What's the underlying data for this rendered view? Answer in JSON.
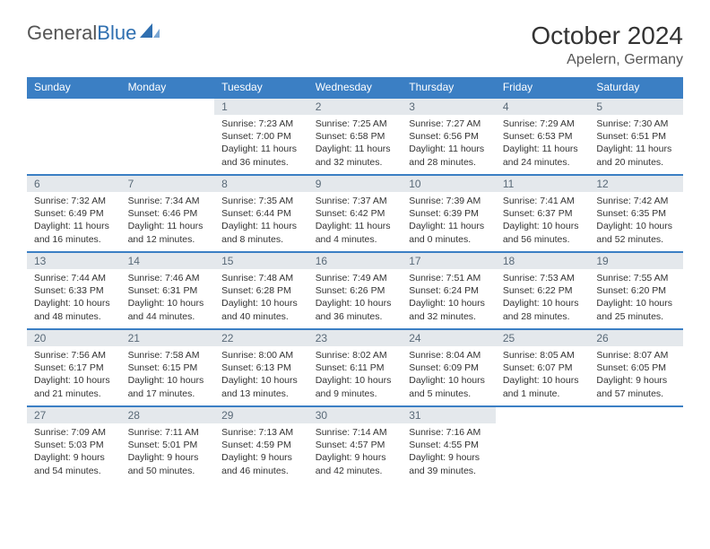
{
  "logo": {
    "text1": "General",
    "text2": "Blue"
  },
  "title": "October 2024",
  "location": "Apelern, Germany",
  "colors": {
    "header_bg": "#3b7fc4",
    "header_text": "#ffffff",
    "daynum_bg": "#e4e8ec",
    "daynum_text": "#5a6a78",
    "row_border": "#3b7fc4",
    "logo_gray": "#555555",
    "logo_blue": "#2f6fb0",
    "body_text": "#333333"
  },
  "weekdays": [
    "Sunday",
    "Monday",
    "Tuesday",
    "Wednesday",
    "Thursday",
    "Friday",
    "Saturday"
  ],
  "weeks": [
    [
      null,
      null,
      {
        "n": "1",
        "sr": "7:23 AM",
        "ss": "7:00 PM",
        "dl": "11 hours and 36 minutes."
      },
      {
        "n": "2",
        "sr": "7:25 AM",
        "ss": "6:58 PM",
        "dl": "11 hours and 32 minutes."
      },
      {
        "n": "3",
        "sr": "7:27 AM",
        "ss": "6:56 PM",
        "dl": "11 hours and 28 minutes."
      },
      {
        "n": "4",
        "sr": "7:29 AM",
        "ss": "6:53 PM",
        "dl": "11 hours and 24 minutes."
      },
      {
        "n": "5",
        "sr": "7:30 AM",
        "ss": "6:51 PM",
        "dl": "11 hours and 20 minutes."
      }
    ],
    [
      {
        "n": "6",
        "sr": "7:32 AM",
        "ss": "6:49 PM",
        "dl": "11 hours and 16 minutes."
      },
      {
        "n": "7",
        "sr": "7:34 AM",
        "ss": "6:46 PM",
        "dl": "11 hours and 12 minutes."
      },
      {
        "n": "8",
        "sr": "7:35 AM",
        "ss": "6:44 PM",
        "dl": "11 hours and 8 minutes."
      },
      {
        "n": "9",
        "sr": "7:37 AM",
        "ss": "6:42 PM",
        "dl": "11 hours and 4 minutes."
      },
      {
        "n": "10",
        "sr": "7:39 AM",
        "ss": "6:39 PM",
        "dl": "11 hours and 0 minutes."
      },
      {
        "n": "11",
        "sr": "7:41 AM",
        "ss": "6:37 PM",
        "dl": "10 hours and 56 minutes."
      },
      {
        "n": "12",
        "sr": "7:42 AM",
        "ss": "6:35 PM",
        "dl": "10 hours and 52 minutes."
      }
    ],
    [
      {
        "n": "13",
        "sr": "7:44 AM",
        "ss": "6:33 PM",
        "dl": "10 hours and 48 minutes."
      },
      {
        "n": "14",
        "sr": "7:46 AM",
        "ss": "6:31 PM",
        "dl": "10 hours and 44 minutes."
      },
      {
        "n": "15",
        "sr": "7:48 AM",
        "ss": "6:28 PM",
        "dl": "10 hours and 40 minutes."
      },
      {
        "n": "16",
        "sr": "7:49 AM",
        "ss": "6:26 PM",
        "dl": "10 hours and 36 minutes."
      },
      {
        "n": "17",
        "sr": "7:51 AM",
        "ss": "6:24 PM",
        "dl": "10 hours and 32 minutes."
      },
      {
        "n": "18",
        "sr": "7:53 AM",
        "ss": "6:22 PM",
        "dl": "10 hours and 28 minutes."
      },
      {
        "n": "19",
        "sr": "7:55 AM",
        "ss": "6:20 PM",
        "dl": "10 hours and 25 minutes."
      }
    ],
    [
      {
        "n": "20",
        "sr": "7:56 AM",
        "ss": "6:17 PM",
        "dl": "10 hours and 21 minutes."
      },
      {
        "n": "21",
        "sr": "7:58 AM",
        "ss": "6:15 PM",
        "dl": "10 hours and 17 minutes."
      },
      {
        "n": "22",
        "sr": "8:00 AM",
        "ss": "6:13 PM",
        "dl": "10 hours and 13 minutes."
      },
      {
        "n": "23",
        "sr": "8:02 AM",
        "ss": "6:11 PM",
        "dl": "10 hours and 9 minutes."
      },
      {
        "n": "24",
        "sr": "8:04 AM",
        "ss": "6:09 PM",
        "dl": "10 hours and 5 minutes."
      },
      {
        "n": "25",
        "sr": "8:05 AM",
        "ss": "6:07 PM",
        "dl": "10 hours and 1 minute."
      },
      {
        "n": "26",
        "sr": "8:07 AM",
        "ss": "6:05 PM",
        "dl": "9 hours and 57 minutes."
      }
    ],
    [
      {
        "n": "27",
        "sr": "7:09 AM",
        "ss": "5:03 PM",
        "dl": "9 hours and 54 minutes."
      },
      {
        "n": "28",
        "sr": "7:11 AM",
        "ss": "5:01 PM",
        "dl": "9 hours and 50 minutes."
      },
      {
        "n": "29",
        "sr": "7:13 AM",
        "ss": "4:59 PM",
        "dl": "9 hours and 46 minutes."
      },
      {
        "n": "30",
        "sr": "7:14 AM",
        "ss": "4:57 PM",
        "dl": "9 hours and 42 minutes."
      },
      {
        "n": "31",
        "sr": "7:16 AM",
        "ss": "4:55 PM",
        "dl": "9 hours and 39 minutes."
      },
      null,
      null
    ]
  ],
  "labels": {
    "sunrise": "Sunrise: ",
    "sunset": "Sunset: ",
    "daylight": "Daylight: "
  }
}
